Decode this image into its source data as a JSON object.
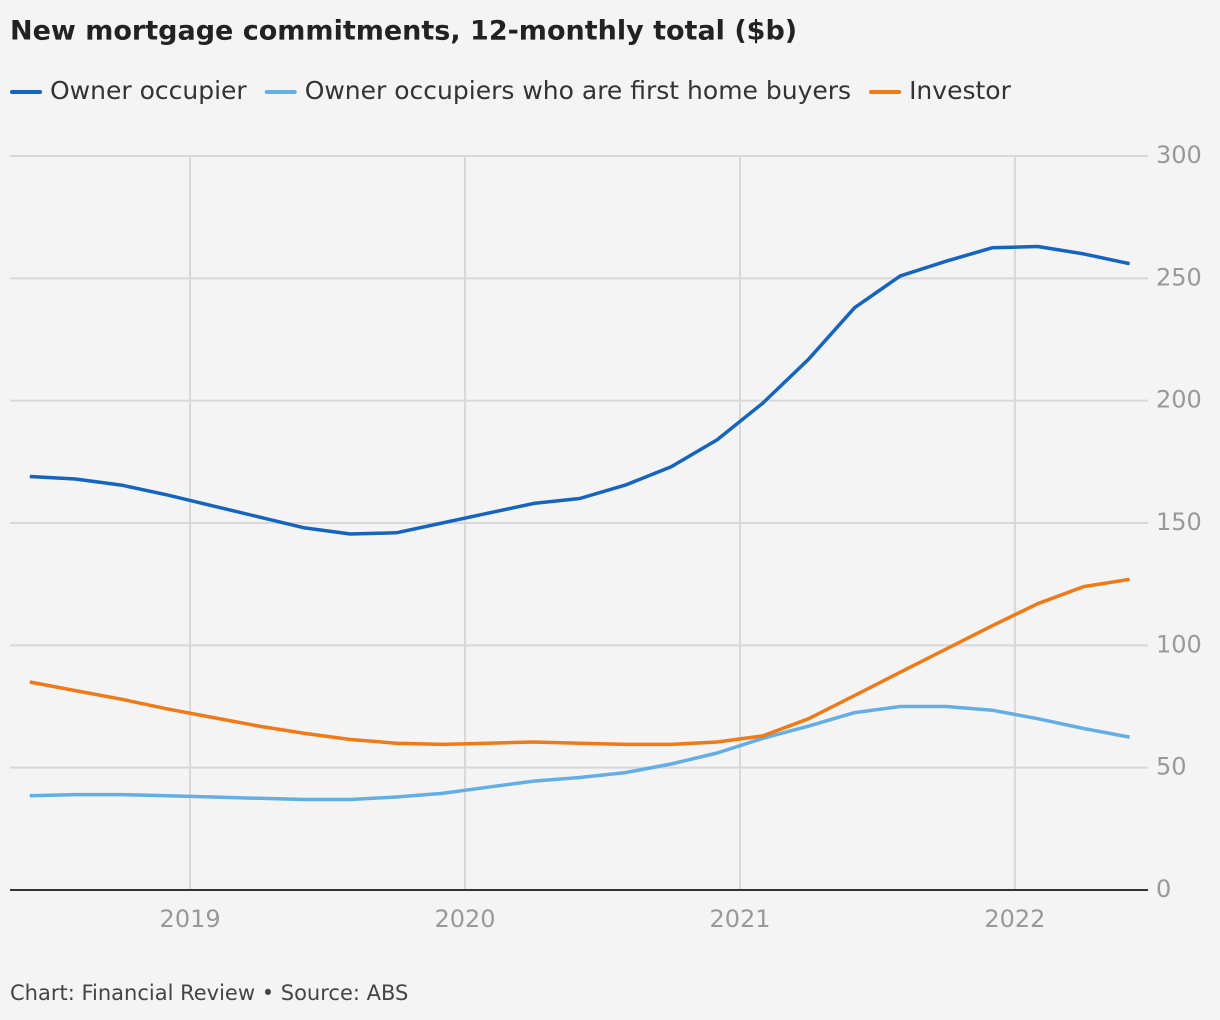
{
  "chart_data": {
    "type": "line",
    "title": "New mortgage commitments, 12-monthly total ($b)",
    "source": "Chart: Financial Review • Source: ABS",
    "x": [
      2018.417,
      2018.583,
      2018.75,
      2018.917,
      2019.083,
      2019.25,
      2019.417,
      2019.583,
      2019.75,
      2019.917,
      2020.083,
      2020.25,
      2020.417,
      2020.583,
      2020.75,
      2020.917,
      2021.083,
      2021.25,
      2021.417,
      2021.583,
      2021.75,
      2021.917,
      2022.083,
      2022.25,
      2022.417
    ],
    "series": [
      {
        "name": "Owner occupier",
        "color": "#1565c0",
        "values": [
          169,
          168,
          165.5,
          161.5,
          157,
          152.5,
          148,
          145.5,
          146,
          150,
          154,
          158,
          160,
          165.5,
          173,
          184,
          199,
          217,
          238,
          251,
          257,
          262.5,
          263,
          260,
          256
        ]
      },
      {
        "name": "Owner occupiers who are first home buyers",
        "color": "#64aee6",
        "values": [
          38.5,
          39,
          39,
          38.5,
          38,
          37.5,
          37,
          37,
          38,
          39.5,
          42,
          44.5,
          46,
          48,
          51.5,
          56,
          62,
          67,
          72.5,
          75,
          75,
          73.5,
          70,
          66,
          62.5
        ]
      },
      {
        "name": "Investor",
        "color": "#ef7a17",
        "values": [
          85,
          81.5,
          78,
          74,
          70.5,
          67,
          64,
          61.5,
          60,
          59.5,
          60,
          60.5,
          60,
          59.5,
          59.5,
          60.5,
          63,
          70,
          79.5,
          89,
          98.5,
          108,
          117,
          124,
          127
        ]
      }
    ],
    "xlim": [
      2018.345,
      2022.484
    ],
    "xticks": [
      2019,
      2020,
      2021,
      2022
    ],
    "ylim": [
      0,
      300
    ],
    "yticks": [
      0,
      50,
      100,
      150,
      200,
      250,
      300
    ],
    "grid": true,
    "y_axis_side": "right",
    "legend": "top"
  }
}
